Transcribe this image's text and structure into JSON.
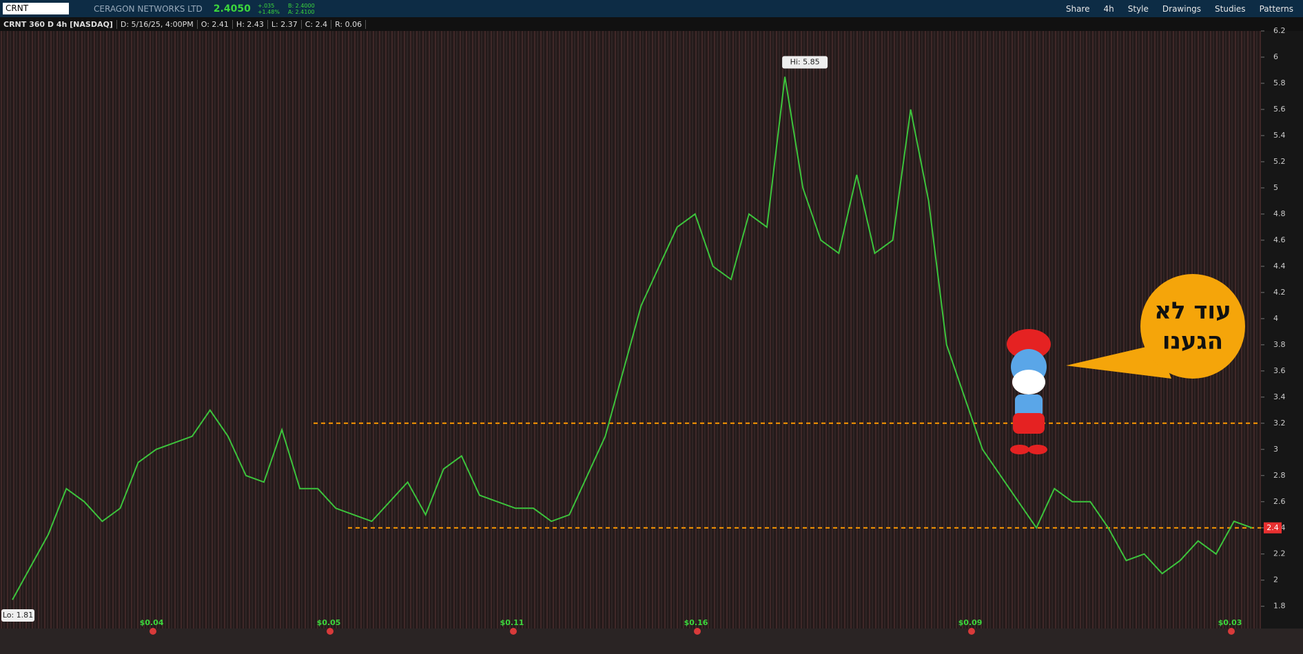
{
  "toolbar": {
    "symbol": "CRNT",
    "company": "CERAGON NETWORKS LTD",
    "last": "2.4050",
    "change": "+.035",
    "change_pct": "+1.48%",
    "bid": "B: 2.4000",
    "ask": "A: 2.4100",
    "buttons": [
      "Share",
      "4h",
      "Style",
      "Drawings",
      "Studies",
      "Patterns"
    ]
  },
  "header": {
    "title": "CRNT 360 D 4h [NASDAQ]",
    "fields": [
      "D: 5/16/25, 4:00PM",
      "O: 2.41",
      "H: 2.43",
      "L: 2.37",
      "C: 2.4",
      "R: 0.06"
    ]
  },
  "callout": {
    "lines": [
      "עוד לא",
      "הגענו"
    ]
  },
  "chart_data": {
    "type": "line",
    "color": "#3cc43c",
    "categories": [
      null,
      null,
      null,
      null,
      null,
      null,
      null,
      null,
      null,
      null,
      null,
      null,
      null,
      null,
      null,
      null,
      null,
      null,
      null,
      null,
      null,
      null,
      null,
      null,
      null,
      null,
      null,
      null,
      null,
      null,
      null,
      null,
      null,
      null,
      null,
      null,
      null,
      null,
      null,
      null,
      null,
      null,
      null,
      null,
      null,
      null,
      null,
      null,
      null,
      null,
      null,
      null,
      null,
      null,
      null,
      null,
      null,
      null,
      null,
      null,
      null,
      null,
      null,
      null,
      null,
      null,
      null,
      null,
      null,
      null
    ],
    "values": [
      1.85,
      2.1,
      2.35,
      2.7,
      2.6,
      2.45,
      2.55,
      2.9,
      3.0,
      3.05,
      3.1,
      3.3,
      3.1,
      2.8,
      2.75,
      3.15,
      2.7,
      2.7,
      2.55,
      2.5,
      2.45,
      2.6,
      2.75,
      2.5,
      2.85,
      2.95,
      2.65,
      2.6,
      2.55,
      2.55,
      2.45,
      2.5,
      2.8,
      3.1,
      3.6,
      4.1,
      4.4,
      4.7,
      4.8,
      4.4,
      4.3,
      4.8,
      4.7,
      5.85,
      5.0,
      4.6,
      4.5,
      5.1,
      4.5,
      4.6,
      5.6,
      4.9,
      3.8,
      3.4,
      3.0,
      2.8,
      2.6,
      2.4,
      2.7,
      2.6,
      2.6,
      2.4,
      2.15,
      2.2,
      2.05,
      2.15,
      2.3,
      2.2,
      2.45,
      2.4
    ],
    "ylim": [
      1.63,
      6.2
    ],
    "yticks": [
      1.8,
      2,
      2.2,
      2.4,
      2.6,
      2.8,
      3,
      3.2,
      3.4,
      3.6,
      3.8,
      4,
      4.2,
      4.4,
      4.6,
      4.8,
      5,
      5.2,
      5.4,
      5.6,
      5.8,
      6,
      6.2
    ],
    "levels": [
      {
        "value": 3.2,
        "color": "#ff9900"
      },
      {
        "value": 2.4,
        "color": "#ff9900"
      }
    ],
    "last_price": 2.4,
    "high_label": "Hi: 5.85",
    "low_label": "Lo: 1.81",
    "dividends": [
      "$0.04",
      "$0.05",
      "$0.11",
      "$0.16",
      "$0.09",
      "$0.03"
    ]
  }
}
